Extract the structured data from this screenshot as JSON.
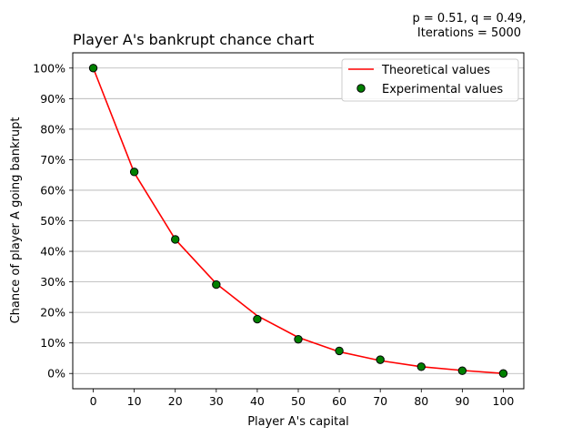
{
  "chart_data": {
    "type": "line",
    "title": "Player A's bankrupt chance chart",
    "annotation_lines": [
      "p = 0.51, q = 0.49,",
      "Iterations = 5000"
    ],
    "xlabel": "Player A's capital",
    "ylabel": "Chance of player A going bankrupt",
    "xlim": [
      -5,
      105
    ],
    "ylim": [
      -5,
      105
    ],
    "x_ticks": [
      0,
      10,
      20,
      30,
      40,
      50,
      60,
      70,
      80,
      90,
      100
    ],
    "y_ticks": [
      0,
      10,
      20,
      30,
      40,
      50,
      60,
      70,
      80,
      90,
      100
    ],
    "y_tick_labels": [
      "0%",
      "10%",
      "20%",
      "30%",
      "40%",
      "50%",
      "60%",
      "70%",
      "80%",
      "90%",
      "100%"
    ],
    "grid": "horizontal",
    "legend_position": "top-right",
    "series": [
      {
        "name": "Theoretical values",
        "kind": "line",
        "color": "#ff0000",
        "x": [
          0,
          10,
          20,
          30,
          40,
          50,
          60,
          70,
          80,
          90,
          100
        ],
        "values": [
          100,
          65.7,
          43.9,
          29.4,
          18.9,
          11.8,
          7.1,
          4.2,
          2.2,
          1.0,
          0
        ]
      },
      {
        "name": "Experimental values",
        "kind": "scatter",
        "color": "#008000",
        "edge_color": "#000000",
        "x": [
          0,
          10,
          20,
          30,
          40,
          50,
          60,
          70,
          80,
          90,
          100
        ],
        "values": [
          100,
          66.0,
          43.9,
          29.1,
          17.8,
          11.2,
          7.4,
          4.5,
          2.2,
          0.9,
          0
        ]
      }
    ]
  }
}
